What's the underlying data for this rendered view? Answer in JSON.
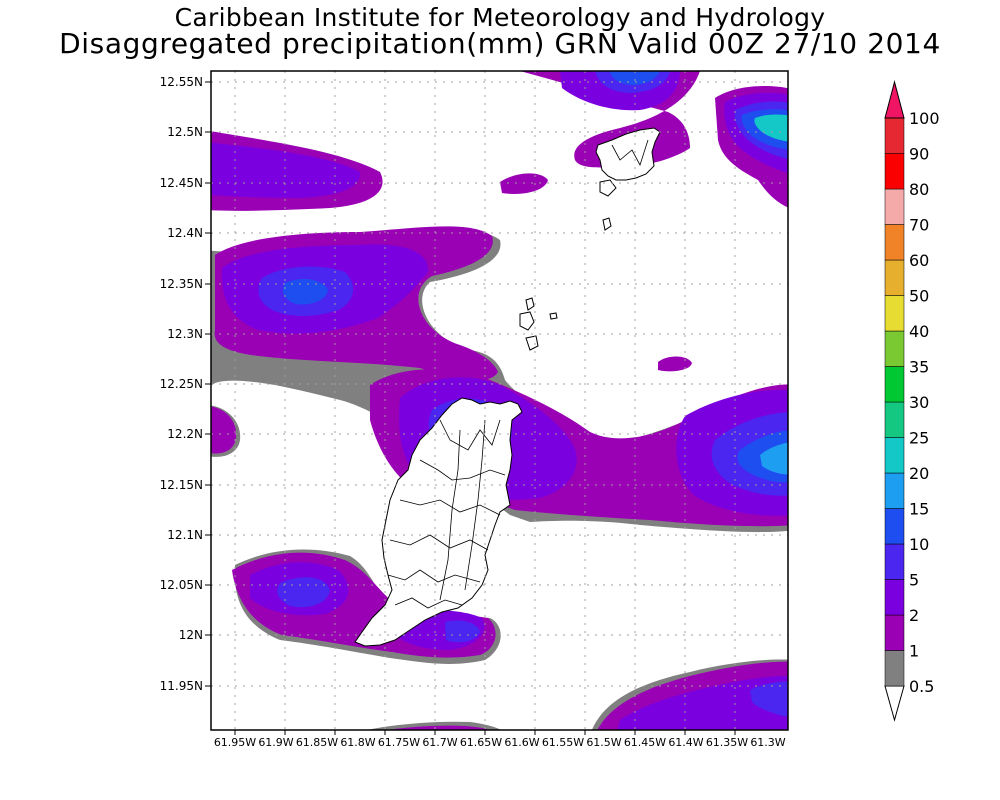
{
  "header": {
    "institution": "Caribbean Institute for Meteorology and Hydrology",
    "product": "Disaggregated precipitation(mm) GRN Valid 00Z 27/10 2014"
  },
  "map": {
    "lat_ticks": [
      "11.95N",
      "12N",
      "12.05N",
      "12.1N",
      "12.15N",
      "12.2N",
      "12.25N",
      "12.3N",
      "12.35N",
      "12.4N",
      "12.45N",
      "12.5N",
      "12.55N"
    ],
    "lon_ticks": [
      "61.95W",
      "61.9W",
      "61.85W",
      "61.8W",
      "61.75W",
      "61.7W",
      "61.65W",
      "61.6W",
      "61.55W",
      "61.5W",
      "61.45W",
      "61.4W",
      "61.35W",
      "61.3W"
    ]
  },
  "legend": {
    "levels": [
      "0.5",
      "1",
      "2",
      "5",
      "10",
      "15",
      "20",
      "25",
      "30",
      "35",
      "40",
      "50",
      "60",
      "70",
      "80",
      "90",
      "100"
    ],
    "colors": [
      "#808080",
      "#9a00b4",
      "#7b00e0",
      "#4a26f0",
      "#1e4ef0",
      "#1e9ef0",
      "#14c8c8",
      "#14c882",
      "#00c832",
      "#7ac832",
      "#e6dc32",
      "#e6af2d",
      "#f08228",
      "#f5aaaa",
      "#fa0000",
      "#e62832",
      "#f01464"
    ]
  }
}
